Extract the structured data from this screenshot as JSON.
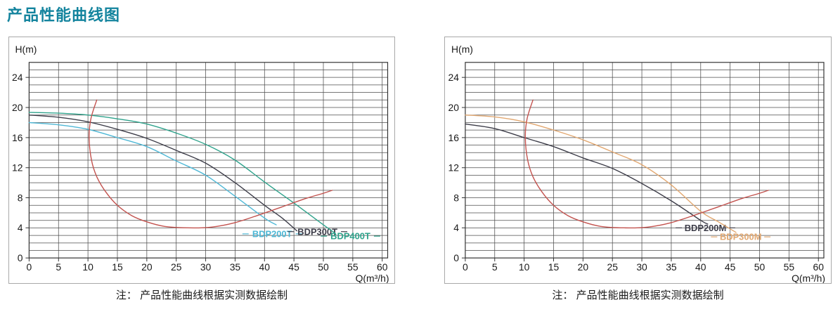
{
  "title": "产品性能曲线图",
  "accent_color": "#14849e",
  "chart_data": [
    {
      "type": "line",
      "title": "",
      "xlabel": "Q(m³/h)",
      "ylabel": "H(m)",
      "xlim": [
        0,
        61
      ],
      "ylim": [
        0,
        26
      ],
      "x_ticks": [
        0,
        5,
        10,
        15,
        20,
        25,
        30,
        35,
        40,
        45,
        50,
        55,
        60
      ],
      "y_ticks": [
        0,
        4,
        8,
        12,
        16,
        20,
        24
      ],
      "grid": "on",
      "grid_x_step": 5,
      "grid_y_step": 1,
      "legend_position": "inline-labels",
      "note": "注： 产品性能曲线根据实测数据绘制",
      "series": [
        {
          "name": "BDP200T",
          "color": "#4fb8d6",
          "points": [
            [
              0,
              18.0
            ],
            [
              5,
              17.7
            ],
            [
              10,
              17.1
            ],
            [
              15,
              16.0
            ],
            [
              20,
              14.8
            ],
            [
              25,
              12.9
            ],
            [
              30,
              11.0
            ],
            [
              35,
              8.2
            ],
            [
              40,
              5.3
            ],
            [
              42,
              4.4
            ]
          ],
          "label": {
            "x": 41.3,
            "y": 3.2
          }
        },
        {
          "name": "BDP300T",
          "color": "#3d3d49",
          "points": [
            [
              0,
              19.0
            ],
            [
              5,
              18.7
            ],
            [
              10,
              18.1
            ],
            [
              15,
              17.1
            ],
            [
              20,
              15.9
            ],
            [
              25,
              14.3
            ],
            [
              30,
              12.6
            ],
            [
              35,
              10.0
            ],
            [
              40,
              7.0
            ],
            [
              43,
              5.3
            ],
            [
              45.5,
              3.6
            ]
          ],
          "label": {
            "x": 49.0,
            "y": 3.5
          }
        },
        {
          "name": "BDP400T",
          "color": "#2fa38c",
          "points": [
            [
              0,
              19.35
            ],
            [
              5,
              19.25
            ],
            [
              10,
              19.0
            ],
            [
              15,
              18.5
            ],
            [
              20,
              17.8
            ],
            [
              25,
              16.6
            ],
            [
              30,
              15.1
            ],
            [
              35,
              13.0
            ],
            [
              40,
              10.1
            ],
            [
              45,
              7.3
            ],
            [
              50,
              4.4
            ],
            [
              52,
              3.3
            ]
          ],
          "label": {
            "x": 54.6,
            "y": 2.9
          }
        },
        {
          "name": "",
          "role": "operating-range-curve",
          "color": "#c2524e",
          "points": [
            [
              11.5,
              21.0
            ],
            [
              10.5,
              18.5
            ],
            [
              10.2,
              16.0
            ],
            [
              10.6,
              13.0
            ],
            [
              11.5,
              10.8
            ],
            [
              13,
              8.8
            ],
            [
              15,
              7.0
            ],
            [
              17.5,
              5.6
            ],
            [
              20,
              4.8
            ],
            [
              23,
              4.2
            ],
            [
              27,
              4.0
            ],
            [
              31,
              4.1
            ],
            [
              35,
              4.7
            ],
            [
              39,
              5.7
            ],
            [
              43,
              6.8
            ],
            [
              47,
              7.9
            ],
            [
              50,
              8.6
            ],
            [
              51.5,
              9.0
            ]
          ]
        }
      ]
    },
    {
      "type": "line",
      "title": "",
      "xlabel": "Q(m³/h)",
      "ylabel": "H(m)",
      "xlim": [
        0,
        61
      ],
      "ylim": [
        0,
        26
      ],
      "x_ticks": [
        0,
        5,
        10,
        15,
        20,
        25,
        30,
        35,
        40,
        45,
        50,
        55,
        60
      ],
      "y_ticks": [
        0,
        4,
        8,
        12,
        16,
        20,
        24
      ],
      "grid": "on",
      "grid_x_step": 5,
      "grid_y_step": 1,
      "legend_position": "inline-labels",
      "note": "注： 产品性能曲线根据实测数据绘制",
      "series": [
        {
          "name": "BDP200M",
          "color": "#3d3d49",
          "points": [
            [
              0,
              17.8
            ],
            [
              5,
              17.2
            ],
            [
              10,
              16.0
            ],
            [
              15,
              14.8
            ],
            [
              20,
              13.3
            ],
            [
              25,
              11.9
            ],
            [
              30,
              9.9
            ],
            [
              35,
              7.6
            ],
            [
              40,
              5.0
            ],
            [
              41.2,
              4.5
            ]
          ],
          "label": {
            "x": 40.8,
            "y": 4.0
          }
        },
        {
          "name": "BDP300M",
          "color": "#e2a871",
          "points": [
            [
              0,
              19.0
            ],
            [
              5,
              18.75
            ],
            [
              10,
              18.1
            ],
            [
              15,
              17.0
            ],
            [
              20,
              15.7
            ],
            [
              25,
              14.1
            ],
            [
              30,
              12.4
            ],
            [
              35,
              9.7
            ],
            [
              40,
              6.2
            ],
            [
              43,
              4.8
            ],
            [
              46,
              3.4
            ]
          ],
          "label": {
            "x": 46.8,
            "y": 2.8
          }
        },
        {
          "name": "",
          "role": "operating-range-curve",
          "color": "#c2524e",
          "points": [
            [
              11.5,
              21.0
            ],
            [
              10.5,
              18.5
            ],
            [
              10.2,
              16.0
            ],
            [
              10.6,
              13.0
            ],
            [
              11.5,
              10.8
            ],
            [
              13,
              8.8
            ],
            [
              15,
              7.0
            ],
            [
              17.5,
              5.6
            ],
            [
              20,
              4.8
            ],
            [
              23,
              4.2
            ],
            [
              27,
              4.0
            ],
            [
              31,
              4.1
            ],
            [
              35,
              4.7
            ],
            [
              39,
              5.7
            ],
            [
              43,
              6.8
            ],
            [
              47,
              7.9
            ],
            [
              50,
              8.6
            ],
            [
              51.5,
              9.0
            ]
          ]
        }
      ]
    }
  ]
}
